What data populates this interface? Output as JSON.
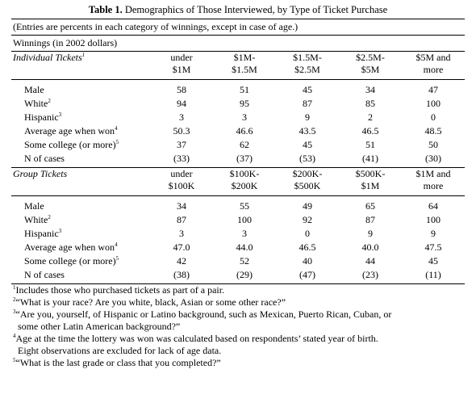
{
  "title": {
    "bold": "Table 1.",
    "text": "Demographics of Those Interviewed, by Type of Ticket Purchase"
  },
  "note": "(Entries are percents in each category of winnings, except in case of age.)",
  "winnings_label": "Winnings (in 2002 dollars)",
  "sections": [
    {
      "label": "Individual Tickets",
      "label_sup": "1",
      "cols": [
        [
          "under",
          "$1M"
        ],
        [
          "$1M-",
          "$1.5M"
        ],
        [
          "$1.5M-",
          "$2.5M"
        ],
        [
          "$2.5M-",
          "$5M"
        ],
        [
          "$5M and",
          "more"
        ]
      ],
      "rows": [
        {
          "label": "Male",
          "sup": "",
          "values": [
            "58",
            "51",
            "45",
            "34",
            "47"
          ]
        },
        {
          "label": "White",
          "sup": "2",
          "values": [
            "94",
            "95",
            "87",
            "85",
            "100"
          ]
        },
        {
          "label": "Hispanic",
          "sup": "3",
          "values": [
            "3",
            "3",
            "9",
            "2",
            "0"
          ]
        },
        {
          "label": "Average age when won",
          "sup": "4",
          "values": [
            "50.3",
            "46.6",
            "43.5",
            "46.5",
            "48.5"
          ]
        },
        {
          "label": "Some college (or more)",
          "sup": "5",
          "values": [
            "37",
            "62",
            "45",
            "51",
            "50"
          ]
        },
        {
          "label": "N of cases",
          "sup": "",
          "values": [
            "(33)",
            "(37)",
            "(53)",
            "(41)",
            "(30)"
          ]
        }
      ]
    },
    {
      "label": "Group Tickets",
      "label_sup": "",
      "cols": [
        [
          "under",
          "$100K"
        ],
        [
          "$100K-",
          "$200K"
        ],
        [
          "$200K-",
          "$500K"
        ],
        [
          "$500K-",
          "$1M"
        ],
        [
          "$1M and",
          "more"
        ]
      ],
      "rows": [
        {
          "label": "Male",
          "sup": "",
          "values": [
            "34",
            "55",
            "49",
            "65",
            "64"
          ]
        },
        {
          "label": "White",
          "sup": "2",
          "values": [
            "87",
            "100",
            "92",
            "87",
            "100"
          ]
        },
        {
          "label": "Hispanic",
          "sup": "3",
          "values": [
            "3",
            "3",
            "0",
            "9",
            "9"
          ]
        },
        {
          "label": "Average age when won",
          "sup": "4",
          "values": [
            "47.0",
            "44.0",
            "46.5",
            "40.0",
            "47.5"
          ]
        },
        {
          "label": "Some college (or more)",
          "sup": "5",
          "values": [
            "42",
            "52",
            "40",
            "44",
            "45"
          ]
        },
        {
          "label": "N of cases",
          "sup": "",
          "values": [
            "(38)",
            "(29)",
            "(47)",
            "(23)",
            "(11)"
          ]
        }
      ]
    }
  ],
  "footnotes": [
    {
      "mark": "1",
      "lines": [
        "Includes those who purchased tickets as part of a pair."
      ]
    },
    {
      "mark": "2",
      "lines": [
        "“What is your race? Are you white, black, Asian or some other race?”"
      ]
    },
    {
      "mark": "3",
      "lines": [
        "“Are you, yourself, of Hispanic or Latino background, such as Mexican, Puerto Rican, Cuban, or",
        "some other Latin American background?”"
      ]
    },
    {
      "mark": "4",
      "lines": [
        "Age at the time the lottery was won was calculated based on respondents’ stated year of birth.",
        "Eight observations are excluded for lack of age data."
      ]
    },
    {
      "mark": "5",
      "lines": [
        "“What is the last grade or class that you completed?”"
      ]
    }
  ]
}
